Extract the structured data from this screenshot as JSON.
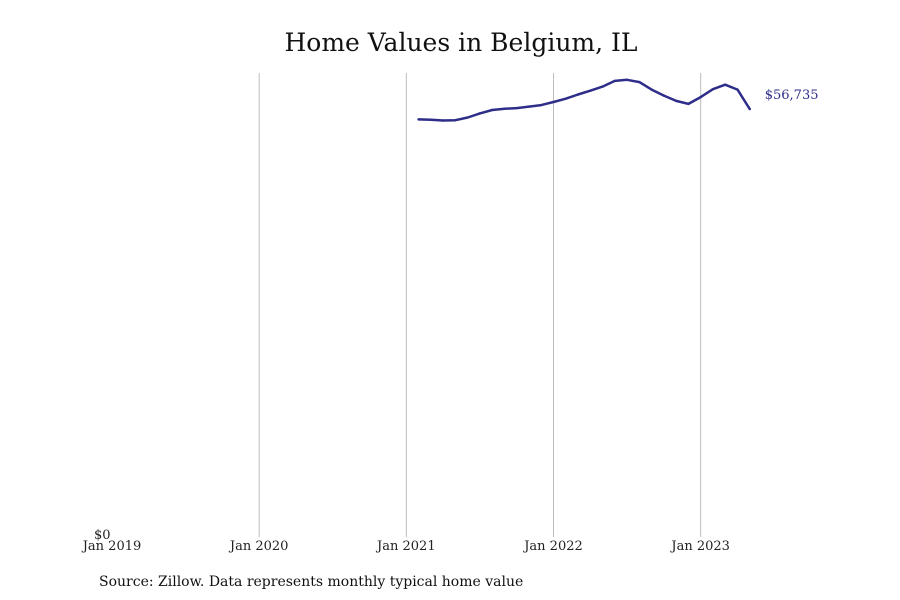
{
  "chart_data": {
    "type": "line",
    "title": "Home Values in Belgium, IL",
    "xlabel": "",
    "ylabel": "",
    "source": "Source: Zillow. Data represents monthly typical home value",
    "x_ticks": [
      {
        "date": "2019-01",
        "label": "Jan 2019"
      },
      {
        "date": "2020-01",
        "label": "Jan 2020"
      },
      {
        "date": "2021-01",
        "label": "Jan 2021"
      },
      {
        "date": "2022-01",
        "label": "Jan 2022"
      },
      {
        "date": "2023-01",
        "label": "Jan 2023"
      }
    ],
    "xlim": [
      "2019-01",
      "2023-06"
    ],
    "y_ticks": [
      {
        "value": 0,
        "label": "$0"
      }
    ],
    "ylim": [
      0,
      61500
    ],
    "grid": "vertical",
    "line_color": "#2e2e8a",
    "end_label": "$56,735",
    "series": [
      {
        "x": [
          "2021-02",
          "2021-03",
          "2021-04",
          "2021-05",
          "2021-06",
          "2021-07",
          "2021-08",
          "2021-09",
          "2021-10",
          "2021-11",
          "2021-12",
          "2022-01",
          "2022-02",
          "2022-03",
          "2022-04",
          "2022-05",
          "2022-06",
          "2022-07",
          "2022-08",
          "2022-09",
          "2022-10",
          "2022-11",
          "2022-12",
          "2023-01",
          "2023-02",
          "2023-03",
          "2023-04",
          "2023-05"
        ],
        "values": [
          55350,
          55300,
          55200,
          55250,
          55600,
          56150,
          56600,
          56750,
          56850,
          57050,
          57250,
          57650,
          58100,
          58650,
          59150,
          59700,
          60450,
          60600,
          60300,
          59300,
          58500,
          57800,
          57400,
          58300,
          59350,
          59950,
          59300,
          56735
        ]
      }
    ]
  }
}
